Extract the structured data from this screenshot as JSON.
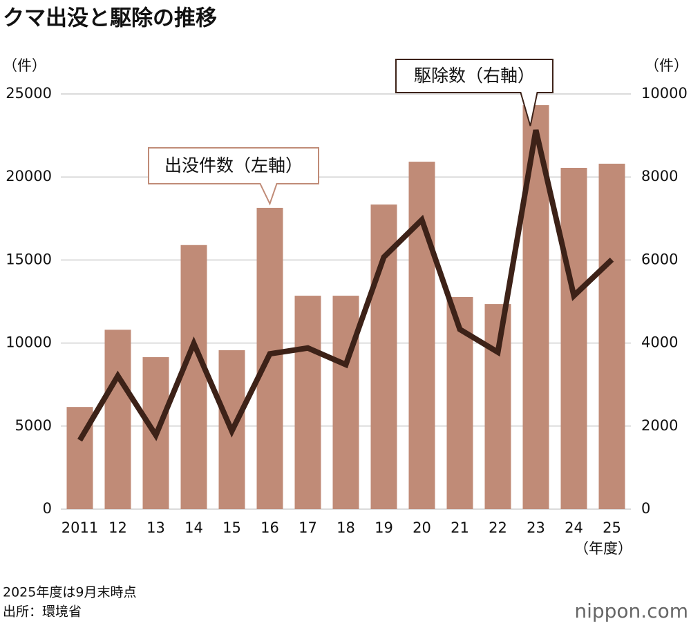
{
  "chart_data": {
    "type": "bar-line",
    "title": "クマ出没と駆除の推移",
    "y_label": "（件）",
    "y2_label": "（件）",
    "x_label": "（年度）",
    "categories": [
      "2011",
      "12",
      "13",
      "14",
      "15",
      "16",
      "17",
      "18",
      "19",
      "20",
      "21",
      "22",
      "23",
      "24",
      "25"
    ],
    "series": [
      {
        "name": "出没件数（左軸）",
        "type": "bar",
        "color": "#c08b77",
        "values": [
          6150,
          10800,
          9150,
          15900,
          9570,
          18140,
          12850,
          12850,
          18340,
          20920,
          12770,
          12350,
          24330,
          20550,
          20800
        ]
      },
      {
        "name": "駆除数（右軸）",
        "type": "line",
        "axis": "y2",
        "color": "#3d2218",
        "values": [
          1660,
          3210,
          1780,
          3990,
          1880,
          3740,
          3880,
          3480,
          6070,
          6970,
          4330,
          3780,
          9130,
          5140,
          6010
        ]
      }
    ],
    "ylim": [
      0,
      25000
    ],
    "yticks": [
      0,
      5000,
      10000,
      15000,
      20000,
      25000
    ],
    "y2lim": [
      0,
      10000
    ],
    "y2ticks": [
      0,
      2000,
      4000,
      6000,
      8000,
      10000
    ],
    "grid": true,
    "notes": [
      "2025年度は9月末時点",
      "出所：環境省"
    ],
    "logo": "nippon.com"
  }
}
